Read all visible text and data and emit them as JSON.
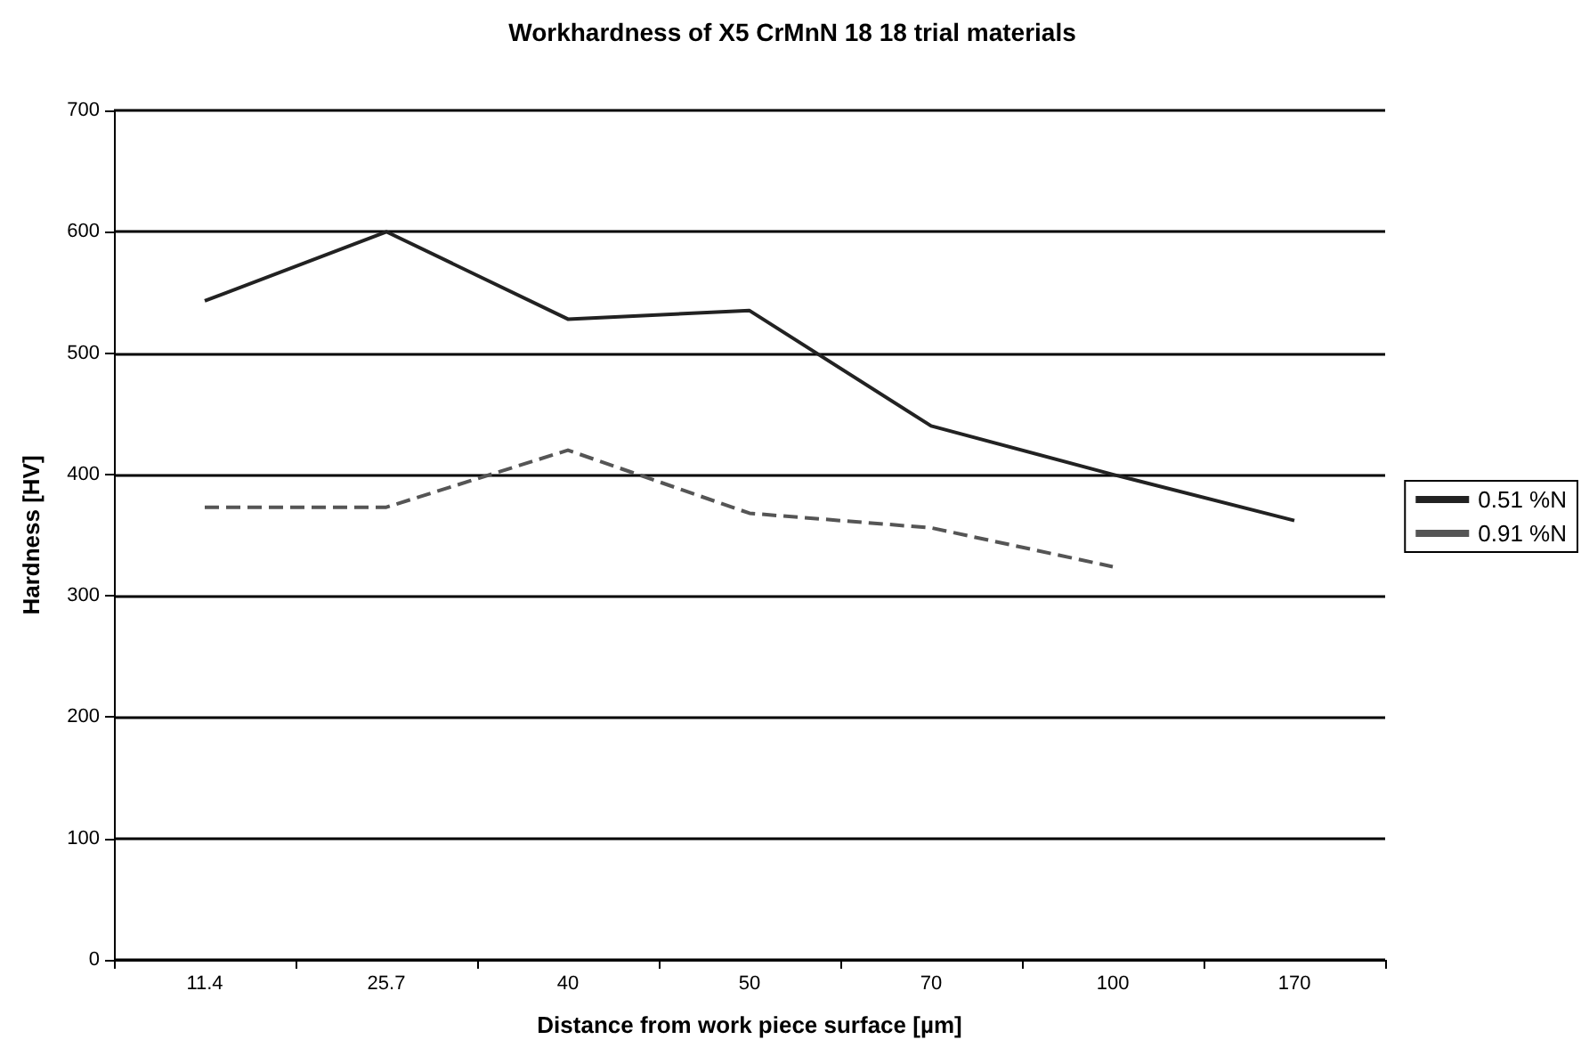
{
  "chart_data": {
    "type": "line",
    "title": "Workhardness of X5 CrMnN 18 18 trial materials",
    "xlabel": "Distance from work piece surface [µm]",
    "ylabel": "Hardness [HV]",
    "categories": [
      "11.4",
      "25.7",
      "40",
      "50",
      "70",
      "100",
      "170"
    ],
    "series": [
      {
        "name": "0.51 %N",
        "color": "#222222",
        "line_style": "solid",
        "values": [
          543,
          600,
          528,
          535,
          440,
          400,
          362
        ]
      },
      {
        "name": "0.91 %N",
        "color": "#555555",
        "line_style": "dashed",
        "values": [
          373,
          373,
          420,
          368,
          356,
          324,
          null
        ]
      }
    ],
    "ylim": [
      0,
      700
    ],
    "yticks": [
      0,
      100,
      200,
      300,
      400,
      500,
      600,
      700
    ],
    "grid": "y",
    "legend": "right",
    "marker": "none"
  }
}
